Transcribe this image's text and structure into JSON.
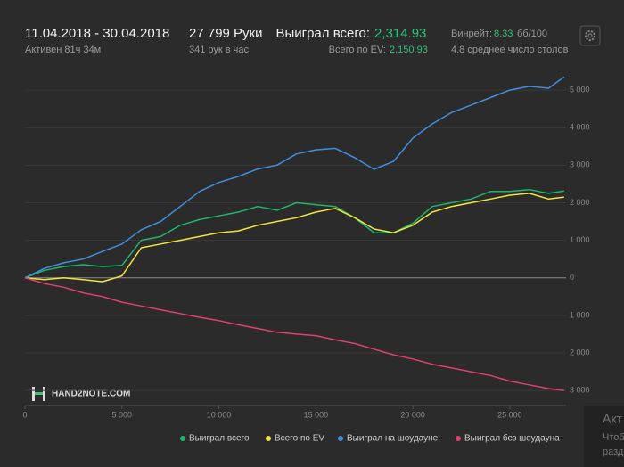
{
  "header": {
    "date_range": "11.04.2018 - 30.04.2018",
    "active": "Активен 81ч 34м",
    "hands": "27 799 Руки",
    "hands_per_hour": "341 рук в час",
    "won_label": "Выиграл всего:",
    "won_value": "2,314.93",
    "ev_label": "Всего по EV:",
    "ev_value": "2,150.93",
    "winrate_label": "Винрейт:",
    "winrate_value": "8.33",
    "winrate_unit": "бб/100",
    "tables": "4.8 среднее число столов"
  },
  "watermark": "HAND2NOTE.COM",
  "side_panel": [
    "Акт",
    "Чтоб",
    "разд"
  ],
  "chart_data": {
    "type": "line",
    "x": [
      0,
      1000,
      2000,
      3000,
      4000,
      5000,
      6000,
      7000,
      8000,
      9000,
      10000,
      11000,
      12000,
      13000,
      14000,
      15000,
      16000,
      17000,
      18000,
      19000,
      20000,
      21000,
      22000,
      23000,
      24000,
      25000,
      26000,
      27000,
      27799
    ],
    "series": [
      {
        "name": "Выиграл всего",
        "color": "#1fb56a",
        "values": [
          0,
          200,
          300,
          350,
          300,
          330,
          1000,
          1100,
          1400,
          1550,
          1650,
          1750,
          1900,
          1800,
          2000,
          1950,
          1900,
          1600,
          1200,
          1200,
          1450,
          1900,
          2000,
          2100,
          2300,
          2300,
          2350,
          2250,
          2314.93
        ]
      },
      {
        "name": "Всего по EV",
        "color": "#f2e53c",
        "values": [
          0,
          -50,
          0,
          -50,
          -100,
          50,
          800,
          900,
          1000,
          1100,
          1200,
          1250,
          1400,
          1500,
          1600,
          1750,
          1850,
          1600,
          1300,
          1200,
          1400,
          1750,
          1900,
          2000,
          2100,
          2200,
          2250,
          2100,
          2150.93
        ]
      },
      {
        "name": "Выиграл на шоудауне",
        "color": "#3f8fdf",
        "values": [
          0,
          250,
          400,
          500,
          700,
          900,
          1280,
          1500,
          1900,
          2300,
          2540,
          2700,
          2900,
          3000,
          3300,
          3410,
          3450,
          3200,
          2890,
          3100,
          3720,
          4100,
          4400,
          4600,
          4800,
          5000,
          5100,
          5050,
          5350
        ]
      },
      {
        "name": "Выиграл без шоудауна",
        "color": "#e0406e",
        "values": [
          0,
          -150,
          -250,
          -400,
          -500,
          -650,
          -750,
          -850,
          -950,
          -1050,
          -1140,
          -1250,
          -1350,
          -1450,
          -1500,
          -1540,
          -1650,
          -1750,
          -1900,
          -2050,
          -2160,
          -2300,
          -2400,
          -2500,
          -2600,
          -2750,
          -2850,
          -2950,
          -3000
        ]
      }
    ],
    "xlim": [
      0,
      27900
    ],
    "xticks": [
      0,
      {
        "value": 5000,
        "label": "5 000"
      },
      {
        "value": 10000,
        "label": "10 000"
      },
      {
        "value": 15000,
        "label": "15 000"
      },
      {
        "value": 20000,
        "label": "20 000"
      },
      {
        "value": 25000,
        "label": "25 000"
      }
    ],
    "ylim": [
      -3400,
      5500
    ],
    "yticks": [
      {
        "value": -3000,
        "label": "3 000"
      },
      {
        "value": -2000,
        "label": "2 000"
      },
      {
        "value": -1000,
        "label": "1 000"
      },
      0,
      {
        "value": 1000,
        "label": "1 000"
      },
      {
        "value": 2000,
        "label": "2 000"
      },
      {
        "value": 3000,
        "label": "3 000"
      },
      {
        "value": 4000,
        "label": "4 000"
      },
      {
        "value": 5000,
        "label": "5 000"
      }
    ],
    "grid": true
  }
}
